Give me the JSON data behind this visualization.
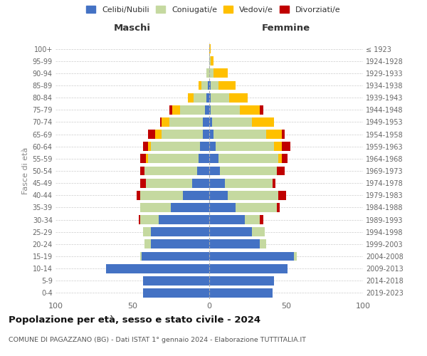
{
  "age_groups": [
    "0-4",
    "5-9",
    "10-14",
    "15-19",
    "20-24",
    "25-29",
    "30-34",
    "35-39",
    "40-44",
    "45-49",
    "50-54",
    "55-59",
    "60-64",
    "65-69",
    "70-74",
    "75-79",
    "80-84",
    "85-89",
    "90-94",
    "95-99",
    "100+"
  ],
  "birth_years": [
    "2019-2023",
    "2014-2018",
    "2009-2013",
    "2004-2008",
    "1999-2003",
    "1994-1998",
    "1989-1993",
    "1984-1988",
    "1979-1983",
    "1974-1978",
    "1969-1973",
    "1964-1968",
    "1959-1963",
    "1954-1958",
    "1949-1953",
    "1944-1948",
    "1939-1943",
    "1934-1938",
    "1929-1933",
    "1924-1928",
    "≤ 1923"
  ],
  "colors": {
    "celibi": "#4472c4",
    "coniugati": "#c5d9a0",
    "vedovi": "#ffc000",
    "divorziati": "#c00000"
  },
  "maschi": {
    "celibi": [
      43,
      43,
      67,
      44,
      38,
      38,
      33,
      25,
      17,
      11,
      8,
      7,
      6,
      4,
      4,
      3,
      2,
      1,
      0,
      0,
      0
    ],
    "coniugati": [
      0,
      0,
      0,
      1,
      4,
      5,
      12,
      20,
      28,
      30,
      34,
      33,
      32,
      27,
      22,
      16,
      8,
      4,
      2,
      0,
      0
    ],
    "vedovi": [
      0,
      0,
      0,
      0,
      0,
      0,
      0,
      0,
      0,
      0,
      0,
      1,
      2,
      4,
      5,
      5,
      4,
      2,
      0,
      0,
      0
    ],
    "divorziati": [
      0,
      0,
      0,
      0,
      0,
      0,
      1,
      0,
      2,
      4,
      3,
      4,
      3,
      5,
      1,
      2,
      0,
      0,
      0,
      0,
      0
    ]
  },
  "femmine": {
    "celibi": [
      41,
      42,
      51,
      55,
      33,
      28,
      23,
      17,
      12,
      10,
      7,
      6,
      4,
      3,
      2,
      1,
      1,
      1,
      0,
      0,
      0
    ],
    "coniugati": [
      0,
      0,
      0,
      2,
      4,
      8,
      10,
      27,
      33,
      31,
      37,
      39,
      38,
      34,
      26,
      19,
      12,
      5,
      3,
      1,
      0
    ],
    "vedovi": [
      0,
      0,
      0,
      0,
      0,
      0,
      0,
      0,
      0,
      0,
      0,
      2,
      5,
      10,
      14,
      13,
      12,
      11,
      9,
      2,
      1
    ],
    "divorziati": [
      0,
      0,
      0,
      0,
      0,
      0,
      2,
      2,
      5,
      2,
      5,
      4,
      6,
      2,
      0,
      2,
      0,
      0,
      0,
      0,
      0
    ]
  },
  "title": "Popolazione per età, sesso e stato civile - 2024",
  "subtitle": "COMUNE DI PAGAZZANO (BG) - Dati ISTAT 1° gennaio 2024 - Elaborazione TUTTITALIA.IT",
  "xlabel_left": "Maschi",
  "xlabel_right": "Femmine",
  "ylabel_left": "Fasce di età",
  "xlim": 100,
  "legend_labels": [
    "Celibi/Nubili",
    "Coniugati/e",
    "Vedovi/e",
    "Divorziati/e"
  ],
  "background_color": "#ffffff",
  "grid_color": "#cccccc"
}
